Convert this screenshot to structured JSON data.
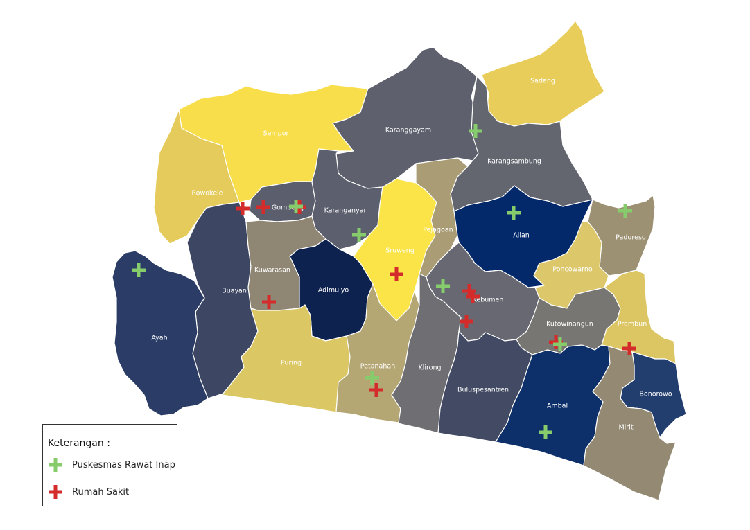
{
  "colors": {
    "rumah_sakit": "#d42b2b",
    "puskesmas": "#86cc6c",
    "border": "#ffffff"
  },
  "regions": [
    {
      "name": "Sadang",
      "color": "#e8cd5a"
    },
    {
      "name": "Sempor",
      "color": "#f9de4c"
    },
    {
      "name": "Karanggayam",
      "color": "#5e616d"
    },
    {
      "name": "Karangsambung",
      "color": "#63666f"
    },
    {
      "name": "Rowokele",
      "color": "#e5cb5c"
    },
    {
      "name": "Gombong",
      "color": "#5b5e6c"
    },
    {
      "name": "Karanganyar",
      "color": "#5c5f6d"
    },
    {
      "name": "Sruweng",
      "color": "#fbe447"
    },
    {
      "name": "Pejagoan",
      "color": "#aa9d76"
    },
    {
      "name": "Alian",
      "color": "#04296b"
    },
    {
      "name": "Padureso",
      "color": "#9d9174"
    },
    {
      "name": "Poncowarno",
      "color": "#dcc76b"
    },
    {
      "name": "Buayan",
      "color": "#3d4763"
    },
    {
      "name": "Kuwarasan",
      "color": "#8f8674"
    },
    {
      "name": "Adimulyo",
      "color": "#0d224f"
    },
    {
      "name": "Kebumen",
      "color": "#676872"
    },
    {
      "name": "Kutowinangun",
      "color": "#777672"
    },
    {
      "name": "Prembun",
      "color": "#dcc663"
    },
    {
      "name": "Ayah",
      "color": "#2b3d66"
    },
    {
      "name": "Puring",
      "color": "#dcc765"
    },
    {
      "name": "Petanahan",
      "color": "#b5a774"
    },
    {
      "name": "Klirong",
      "color": "#6f6f73"
    },
    {
      "name": "Buluspesantren",
      "color": "#434b64"
    },
    {
      "name": "Ambal",
      "color": "#0e306a"
    },
    {
      "name": "Bonorowo",
      "color": "#213e6f"
    },
    {
      "name": "Mirit",
      "color": "#948a74"
    }
  ],
  "markers": {
    "rumah_sakit": 11,
    "puskesmas": 10
  },
  "legend": {
    "title": "Keterangan :",
    "items": [
      {
        "label": "Puskesmas Rawat Inap",
        "color": "#86cc6c"
      },
      {
        "label": "Rumah Sakit",
        "color": "#d42b2b"
      }
    ]
  }
}
